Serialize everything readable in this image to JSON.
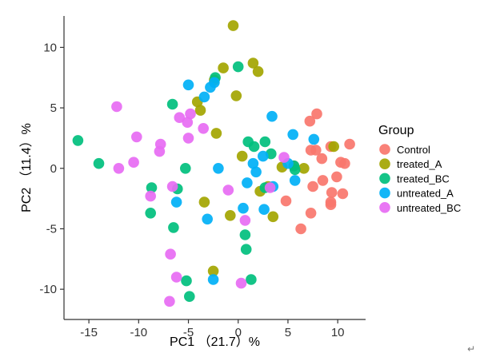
{
  "chart_data": {
    "type": "scatter",
    "xlabel": "PC1 （21.7）%",
    "ylabel": "PC2 （11.4）%",
    "xlim": [
      -17.5,
      12.8
    ],
    "ylim": [
      -12.5,
      12.6
    ],
    "xticks": [
      -15,
      -10,
      -5,
      0,
      5,
      10
    ],
    "yticks": [
      -10,
      -5,
      0,
      5,
      10
    ],
    "grid": false,
    "legend": {
      "title": "Group",
      "placement": "right"
    },
    "series": [
      {
        "name": "Control",
        "color": "#F8766D",
        "points": [
          [
            7.9,
            4.5
          ],
          [
            7.2,
            3.9
          ],
          [
            7.3,
            1.5
          ],
          [
            7.8,
            1.5
          ],
          [
            8.4,
            0.8
          ],
          [
            9.3,
            1.8
          ],
          [
            11.2,
            2.0
          ],
          [
            10.7,
            0.4
          ],
          [
            10.3,
            0.5
          ],
          [
            9.9,
            -0.7
          ],
          [
            8.5,
            -1.0
          ],
          [
            9.4,
            -2.0
          ],
          [
            10.5,
            -2.1
          ],
          [
            9.3,
            -2.8
          ],
          [
            9.3,
            -3.0
          ],
          [
            7.5,
            -1.5
          ],
          [
            7.3,
            -3.7
          ],
          [
            4.8,
            -2.7
          ],
          [
            6.3,
            -5.0
          ],
          [
            5.6,
            0.2
          ]
        ]
      },
      {
        "name": "treated_A",
        "color": "#A3A500",
        "points": [
          [
            -0.5,
            11.8
          ],
          [
            1.5,
            8.7
          ],
          [
            2.0,
            8.0
          ],
          [
            -1.5,
            8.3
          ],
          [
            -2.4,
            7.3
          ],
          [
            -4.1,
            5.5
          ],
          [
            -3.8,
            4.8
          ],
          [
            -0.2,
            6.0
          ],
          [
            -2.2,
            2.9
          ],
          [
            0.4,
            1.0
          ],
          [
            4.4,
            0.1
          ],
          [
            6.6,
            0.0
          ],
          [
            9.6,
            1.8
          ],
          [
            3.0,
            -1.5
          ],
          [
            2.2,
            -1.9
          ],
          [
            3.5,
            -4.0
          ],
          [
            -0.8,
            -3.9
          ],
          [
            -3.4,
            -2.8
          ],
          [
            -2.5,
            -8.5
          ]
        ]
      },
      {
        "name": "treated_BC",
        "color": "#00BF7D",
        "points": [
          [
            -16.1,
            2.3
          ],
          [
            -14.0,
            0.4
          ],
          [
            -6.6,
            5.3
          ],
          [
            -2.3,
            7.5
          ],
          [
            -0.0,
            8.4
          ],
          [
            1.6,
            1.8
          ],
          [
            1.0,
            2.2
          ],
          [
            2.7,
            2.2
          ],
          [
            3.3,
            1.2
          ],
          [
            5.6,
            0.2
          ],
          [
            5.7,
            -0.1
          ],
          [
            -5.3,
            0.0
          ],
          [
            -8.7,
            -1.6
          ],
          [
            -6.1,
            -1.7
          ],
          [
            2.7,
            -1.6
          ],
          [
            -8.8,
            -3.7
          ],
          [
            -6.5,
            -4.9
          ],
          [
            0.7,
            -5.5
          ],
          [
            0.8,
            -6.7
          ],
          [
            -5.2,
            -9.3
          ],
          [
            1.3,
            -9.2
          ],
          [
            -4.9,
            -10.6
          ]
        ]
      },
      {
        "name": "untreated_A",
        "color": "#00B0F6",
        "points": [
          [
            -5.0,
            6.9
          ],
          [
            -2.4,
            7.1
          ],
          [
            -2.8,
            6.7
          ],
          [
            -3.4,
            5.9
          ],
          [
            3.4,
            4.3
          ],
          [
            5.5,
            2.8
          ],
          [
            7.6,
            2.4
          ],
          [
            2.5,
            1.0
          ],
          [
            5.0,
            0.4
          ],
          [
            1.5,
            0.4
          ],
          [
            1.8,
            -0.3
          ],
          [
            5.7,
            -1.0
          ],
          [
            0.9,
            -1.2
          ],
          [
            3.5,
            -1.5
          ],
          [
            -6.2,
            -2.8
          ],
          [
            0.5,
            -3.3
          ],
          [
            2.6,
            -3.4
          ],
          [
            -3.1,
            -4.2
          ],
          [
            -2.5,
            -9.2
          ],
          [
            -2.0,
            0.0
          ]
        ]
      },
      {
        "name": "untreated_BC",
        "color": "#E76BF3",
        "points": [
          [
            -12.2,
            5.1
          ],
          [
            -4.8,
            4.5
          ],
          [
            -5.9,
            4.2
          ],
          [
            -5.1,
            3.8
          ],
          [
            -3.5,
            3.3
          ],
          [
            -10.2,
            2.6
          ],
          [
            -5.0,
            2.5
          ],
          [
            -7.8,
            2.0
          ],
          [
            -7.9,
            1.4
          ],
          [
            -10.5,
            0.5
          ],
          [
            -12.0,
            0.0
          ],
          [
            -1.0,
            -1.8
          ],
          [
            -6.6,
            -1.5
          ],
          [
            3.2,
            -1.6
          ],
          [
            0.7,
            -4.3
          ],
          [
            -8.8,
            -2.3
          ],
          [
            4.6,
            0.9
          ],
          [
            -6.8,
            -7.1
          ],
          [
            -6.2,
            -9.0
          ],
          [
            0.3,
            -9.5
          ],
          [
            -6.9,
            -11.0
          ]
        ]
      }
    ]
  }
}
